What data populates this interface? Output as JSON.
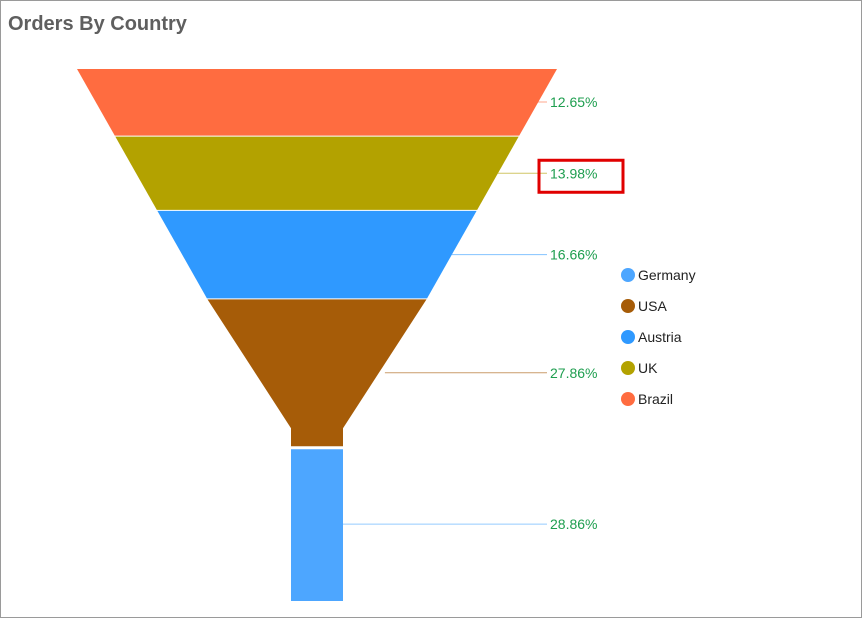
{
  "header": {
    "title": "Orders By Country"
  },
  "chart_data": {
    "type": "funnel",
    "title": "Orders By Country",
    "segments": [
      {
        "name": "Brazil",
        "percent": 12.65,
        "label": "12.65%",
        "color": "#ff6c40"
      },
      {
        "name": "UK",
        "percent": 13.98,
        "label": "13.98%",
        "color": "#b3a200"
      },
      {
        "name": "Austria",
        "percent": 16.66,
        "label": "16.66%",
        "color": "#2f99ff"
      },
      {
        "name": "USA",
        "percent": 27.86,
        "label": "27.86%",
        "color": "#a65c08"
      },
      {
        "name": "Germany",
        "percent": 28.86,
        "label": "28.86%",
        "color": "#4da6ff"
      }
    ],
    "legend": {
      "placement": "right",
      "entries": [
        {
          "name": "Germany",
          "color": "#4da6ff"
        },
        {
          "name": "USA",
          "color": "#a65c08"
        },
        {
          "name": "Austria",
          "color": "#2f99ff"
        },
        {
          "name": "UK",
          "color": "#b3a200"
        },
        {
          "name": "Brazil",
          "color": "#ff6c40"
        }
      ]
    },
    "highlighted_label": "13.98%",
    "highlight_color": "#e00000"
  }
}
